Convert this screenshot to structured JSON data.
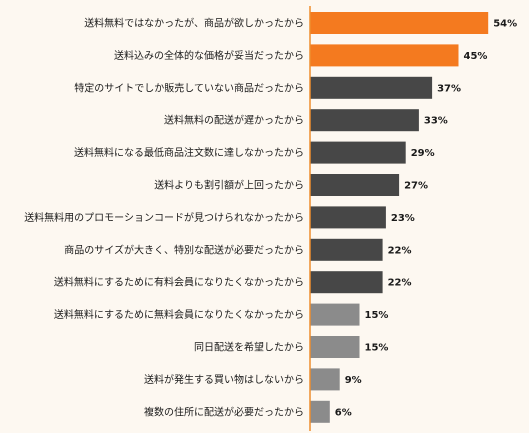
{
  "chart_data": {
    "type": "bar",
    "orientation": "horizontal",
    "title": "",
    "xlabel": "",
    "ylabel": "",
    "unit_suffix": "%",
    "xlim": [
      0,
      60
    ],
    "grid": false,
    "legend": "none",
    "categories": [
      "送料無料ではなかったが、商品が欲しかったから",
      "送料込みの全体的な価格が妥当だったから",
      "特定のサイトでしか販売していない商品だったから",
      "送料無料の配送が遅かったから",
      "送料無料になる最低商品注文数に達しなかったから",
      "送料よりも割引額が上回ったから",
      "送料無料用のプロモーションコードが見つけられなかったから",
      "商品のサイズが大きく、特別な配送が必要だったから",
      "送料無料にするために有料会員になりたくなかったから",
      "送料無料にするために無料会員になりたくなかったから",
      "同日配送を希望したから",
      "送料が発生する買い物はしないから",
      "複数の住所に配送が必要だったから"
    ],
    "values": [
      54,
      45,
      37,
      33,
      29,
      27,
      23,
      22,
      22,
      15,
      15,
      9,
      6
    ],
    "colors": {
      "highlight": "#f47a1f",
      "dark": "#474747",
      "light": "#8b8b8b",
      "axis": "#ef8e2e"
    },
    "bar_color_groups": [
      "highlight",
      "highlight",
      "dark",
      "dark",
      "dark",
      "dark",
      "dark",
      "dark",
      "dark",
      "light",
      "light",
      "light",
      "light"
    ]
  }
}
